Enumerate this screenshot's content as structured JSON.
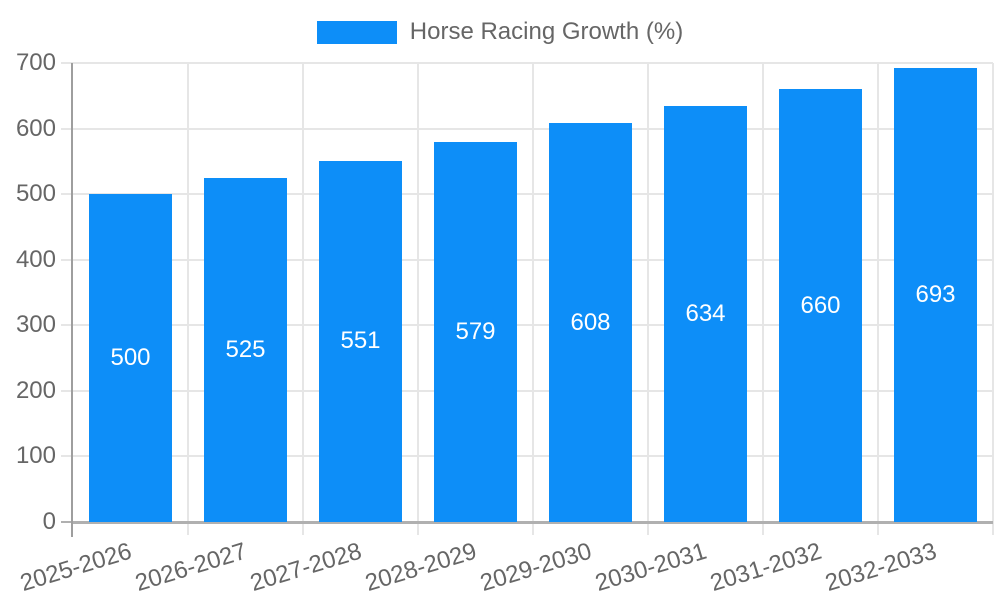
{
  "colors": {
    "bar": "#0d8ef8",
    "grid": "#e6e6e6",
    "axis": "#9e9e9e",
    "axis_bottom": "#b0b0b0",
    "tick_text": "#666666",
    "bar_label_text": "#ffffff",
    "background": "#ffffff"
  },
  "chart_data": {
    "type": "bar",
    "series_label": "Horse Racing Growth (%)",
    "categories": [
      "2025-2026",
      "2026-2027",
      "2027-2028",
      "2028-2029",
      "2029-2030",
      "2030-2031",
      "2031-2032",
      "2032-2033"
    ],
    "values": [
      500,
      525,
      551,
      579,
      608,
      634,
      660,
      693
    ],
    "yticks": [
      0,
      100,
      200,
      300,
      400,
      500,
      600,
      700
    ],
    "ylim": [
      0,
      700
    ],
    "xlabel": "",
    "ylabel": "",
    "grid": true,
    "legend_position": "top",
    "bar_label_position": "center",
    "x_tick_rotation_deg": -17
  }
}
